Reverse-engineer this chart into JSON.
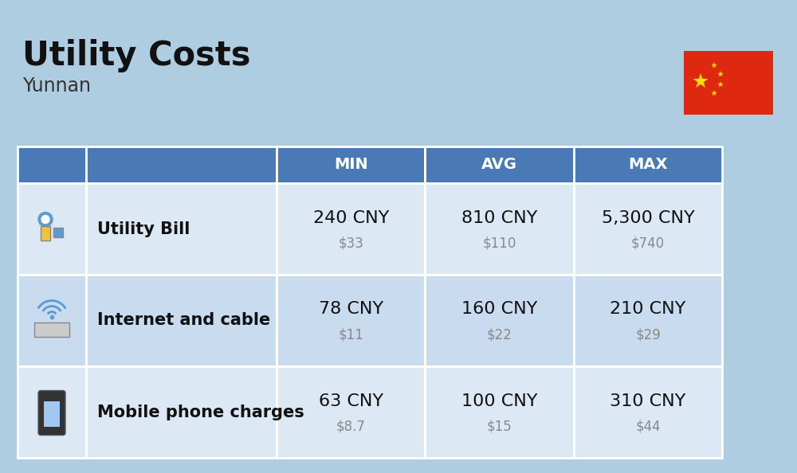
{
  "title": "Utility Costs",
  "subtitle": "Yunnan",
  "background_color": "#aecde0",
  "header_bg_color": "#4a7ab5",
  "header_text_color": "#ffffff",
  "row_bg_colors": [
    "#dce9f5",
    "#c9dbee",
    "#dce9f5"
  ],
  "table_line_color": "#ffffff",
  "rows": [
    {
      "label": "Utility Bill",
      "min_cny": "240 CNY",
      "min_usd": "$33",
      "avg_cny": "810 CNY",
      "avg_usd": "$110",
      "max_cny": "5,300 CNY",
      "max_usd": "$740"
    },
    {
      "label": "Internet and cable",
      "min_cny": "78 CNY",
      "min_usd": "$11",
      "avg_cny": "160 CNY",
      "avg_usd": "$22",
      "max_cny": "210 CNY",
      "max_usd": "$29"
    },
    {
      "label": "Mobile phone charges",
      "min_cny": "63 CNY",
      "min_usd": "$8.7",
      "avg_cny": "100 CNY",
      "avg_usd": "$15",
      "max_cny": "310 CNY",
      "max_usd": "$44"
    }
  ],
  "title_fontsize": 30,
  "subtitle_fontsize": 17,
  "header_fontsize": 14,
  "cell_cny_fontsize": 16,
  "cell_usd_fontsize": 12,
  "label_fontsize": 15
}
